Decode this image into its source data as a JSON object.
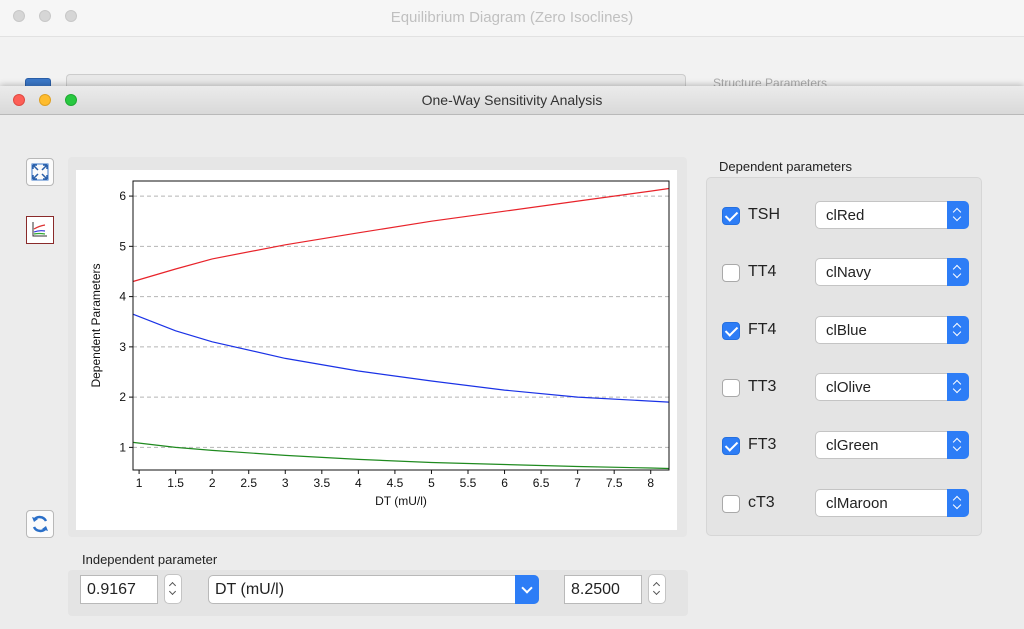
{
  "background_window": {
    "title": "Equilibrium Diagram (Zero Isoclines)",
    "side_label": "Structure Parameters"
  },
  "window": {
    "title": "One-Way Sensitivity Analysis"
  },
  "toolbar": {
    "icons": [
      "fullscreen-icon",
      "chart-icon",
      "refresh-icon"
    ]
  },
  "chart_data": {
    "type": "line",
    "xlabel": "DT (mU/l)",
    "ylabel": "Dependent Parameters",
    "xlim": [
      0.9167,
      8.25
    ],
    "ylim": [
      0.55,
      6.3
    ],
    "x_ticks": [
      "1",
      "1.5",
      "2",
      "2.5",
      "3",
      "3.5",
      "4",
      "4.5",
      "5",
      "5.5",
      "6",
      "6.5",
      "7",
      "7.5",
      "8"
    ],
    "y_ticks": [
      "1",
      "2",
      "3",
      "4",
      "5",
      "6"
    ],
    "grid": "horizontal dashed",
    "series": [
      {
        "color": "#e8232a",
        "x": [
          0.9167,
          1.5,
          2,
          3,
          4,
          5,
          6,
          7,
          8,
          8.25
        ],
        "y": [
          4.3,
          4.55,
          4.75,
          5.03,
          5.27,
          5.5,
          5.7,
          5.9,
          6.1,
          6.15
        ]
      },
      {
        "color": "#1a32e6",
        "x": [
          0.9167,
          1.5,
          2,
          3,
          4,
          5,
          6,
          7,
          8,
          8.25
        ],
        "y": [
          3.65,
          3.32,
          3.1,
          2.77,
          2.52,
          2.32,
          2.14,
          2.0,
          1.92,
          1.9
        ]
      },
      {
        "color": "#1f8a1f",
        "x": [
          0.9167,
          1.5,
          2,
          3,
          4,
          5,
          6,
          7,
          8,
          8.25
        ],
        "y": [
          1.1,
          1.0,
          0.94,
          0.84,
          0.76,
          0.7,
          0.66,
          0.62,
          0.59,
          0.58
        ]
      }
    ]
  },
  "dependent": {
    "title": "Dependent parameters",
    "items": [
      {
        "label": "TSH",
        "checked": true,
        "color": "clRed"
      },
      {
        "label": "TT4",
        "checked": false,
        "color": "clNavy"
      },
      {
        "label": "FT4",
        "checked": true,
        "color": "clBlue"
      },
      {
        "label": "TT3",
        "checked": false,
        "color": "clOlive"
      },
      {
        "label": "FT3",
        "checked": true,
        "color": "clGreen"
      },
      {
        "label": "cT3",
        "checked": false,
        "color": "clMaroon"
      }
    ]
  },
  "independent": {
    "title": "Independent parameter",
    "min": "0.9167",
    "parameter": "DT (mU/l)",
    "max": "8.2500"
  }
}
